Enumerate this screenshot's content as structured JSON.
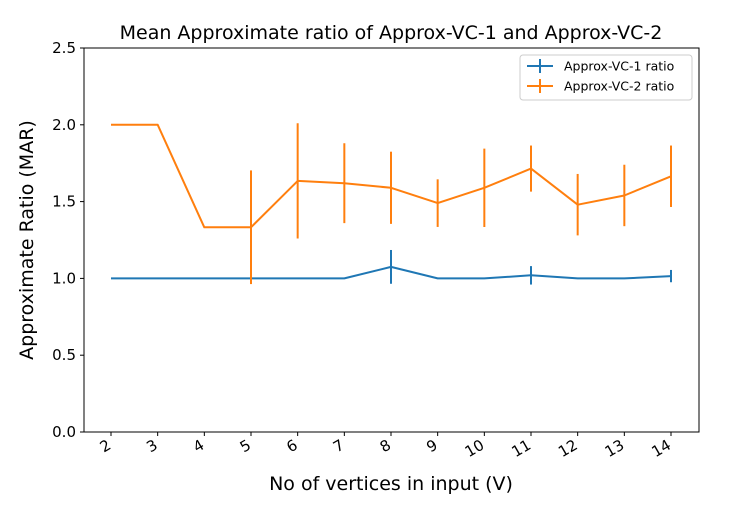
{
  "chart_data": {
    "type": "line",
    "title": "Mean Approximate ratio of  Approx-VC-1 and Approx-VC-2",
    "xlabel": "No of vertices in input (V)",
    "ylabel": "Approximate Ratio (MAR)",
    "x": [
      "2",
      "3",
      "4",
      "5",
      "6",
      "7",
      "8",
      "9",
      "10",
      "11",
      "12",
      "13",
      "14"
    ],
    "ylim": [
      0.0,
      2.5
    ],
    "yticks": [
      "0.0",
      "0.5",
      "1.0",
      "1.5",
      "2.0",
      "2.5"
    ],
    "grid": false,
    "legend_position": "top-right",
    "series": [
      {
        "name": "Approx-VC-1 ratio",
        "color": "#1f77b4",
        "values": [
          1.0,
          1.0,
          1.0,
          1.0,
          1.0,
          1.0,
          1.075,
          1.0,
          1.0,
          1.02,
          1.0,
          1.0,
          1.015
        ],
        "errors": [
          0,
          0,
          0,
          0,
          0,
          0,
          0.11,
          0,
          0,
          0.06,
          0,
          0,
          0.04
        ]
      },
      {
        "name": "Approx-VC-2 ratio",
        "color": "#ff7f0e",
        "values": [
          2.0,
          2.0,
          1.333,
          1.333,
          1.635,
          1.62,
          1.59,
          1.49,
          1.59,
          1.715,
          1.48,
          1.54,
          1.665
        ],
        "errors": [
          0,
          0,
          0,
          0.37,
          0.375,
          0.26,
          0.235,
          0.155,
          0.255,
          0.15,
          0.2,
          0.2,
          0.2
        ]
      }
    ]
  }
}
